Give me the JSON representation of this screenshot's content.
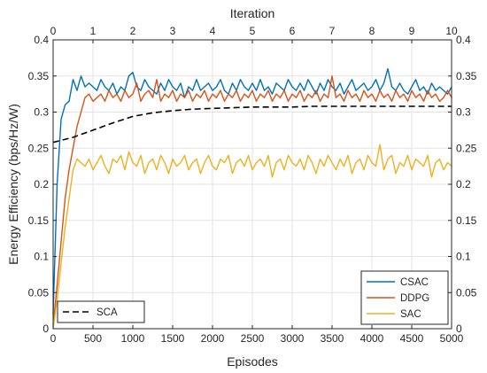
{
  "chart_data": {
    "type": "line",
    "xlabel": "Episodes",
    "ylabel": "Energy Efficiency (bps/Hz/W)",
    "x2label": "Iteration",
    "xlim": [
      0,
      5000
    ],
    "ylim": [
      0,
      0.4
    ],
    "x2lim": [
      0,
      10
    ],
    "xticks": [
      0,
      500,
      1000,
      1500,
      2000,
      2500,
      3000,
      3500,
      4000,
      4500,
      5000
    ],
    "yticks": [
      0,
      0.05,
      0.1,
      0.15,
      0.2,
      0.25,
      0.3,
      0.35,
      0.4
    ],
    "ytick_labels": [
      "0",
      "0.05",
      "0.1",
      "0.15",
      "0.2",
      "0.25",
      "0.3",
      "0.35",
      "0.4"
    ],
    "x2ticks": [
      0,
      1,
      2,
      3,
      4,
      5,
      6,
      7,
      8,
      9,
      10
    ],
    "grid": true,
    "series": [
      {
        "name": "CSAC",
        "axis": "episodes",
        "color": "#0072BD",
        "style": "solid",
        "x": [
          0,
          50,
          100,
          150,
          200,
          250,
          300,
          350,
          400,
          450,
          500,
          550,
          600,
          650,
          700,
          750,
          800,
          850,
          900,
          950,
          1000,
          1050,
          1100,
          1150,
          1200,
          1250,
          1300,
          1350,
          1400,
          1450,
          1500,
          1550,
          1600,
          1650,
          1700,
          1750,
          1800,
          1850,
          1900,
          1950,
          2000,
          2050,
          2100,
          2150,
          2200,
          2250,
          2300,
          2350,
          2400,
          2450,
          2500,
          2550,
          2600,
          2650,
          2700,
          2750,
          2800,
          2850,
          2900,
          2950,
          3000,
          3050,
          3100,
          3150,
          3200,
          3250,
          3300,
          3350,
          3400,
          3450,
          3500,
          3550,
          3600,
          3650,
          3700,
          3750,
          3800,
          3850,
          3900,
          3950,
          4000,
          4050,
          4100,
          4150,
          4200,
          4250,
          4300,
          4350,
          4400,
          4450,
          4500,
          4550,
          4600,
          4650,
          4700,
          4750,
          4800,
          4850,
          4900,
          4950,
          5000
        ],
        "y": [
          0.02,
          0.2,
          0.29,
          0.31,
          0.315,
          0.345,
          0.33,
          0.35,
          0.335,
          0.34,
          0.335,
          0.33,
          0.345,
          0.335,
          0.33,
          0.34,
          0.325,
          0.335,
          0.33,
          0.35,
          0.355,
          0.335,
          0.33,
          0.345,
          0.335,
          0.33,
          0.325,
          0.34,
          0.33,
          0.345,
          0.335,
          0.33,
          0.34,
          0.32,
          0.335,
          0.33,
          0.345,
          0.33,
          0.335,
          0.34,
          0.33,
          0.335,
          0.345,
          0.33,
          0.325,
          0.34,
          0.33,
          0.345,
          0.335,
          0.33,
          0.34,
          0.33,
          0.345,
          0.33,
          0.335,
          0.325,
          0.34,
          0.335,
          0.33,
          0.345,
          0.335,
          0.33,
          0.34,
          0.33,
          0.345,
          0.335,
          0.325,
          0.34,
          0.33,
          0.345,
          0.335,
          0.33,
          0.34,
          0.325,
          0.335,
          0.345,
          0.33,
          0.335,
          0.34,
          0.33,
          0.335,
          0.345,
          0.33,
          0.34,
          0.36,
          0.335,
          0.33,
          0.34,
          0.33,
          0.325,
          0.335,
          0.345,
          0.33,
          0.335,
          0.325,
          0.34,
          0.33,
          0.335,
          0.33,
          0.325,
          0.335
        ]
      },
      {
        "name": "DDPG",
        "axis": "episodes",
        "color": "#D95319",
        "style": "solid",
        "x": [
          0,
          50,
          100,
          150,
          200,
          250,
          300,
          350,
          400,
          450,
          500,
          550,
          600,
          650,
          700,
          750,
          800,
          850,
          900,
          950,
          1000,
          1050,
          1100,
          1150,
          1200,
          1250,
          1300,
          1350,
          1400,
          1450,
          1500,
          1550,
          1600,
          1650,
          1700,
          1750,
          1800,
          1850,
          1900,
          1950,
          2000,
          2050,
          2100,
          2150,
          2200,
          2250,
          2300,
          2350,
          2400,
          2450,
          2500,
          2550,
          2600,
          2650,
          2700,
          2750,
          2800,
          2850,
          2900,
          2950,
          3000,
          3050,
          3100,
          3150,
          3200,
          3250,
          3300,
          3350,
          3400,
          3450,
          3500,
          3550,
          3600,
          3650,
          3700,
          3750,
          3800,
          3850,
          3900,
          3950,
          4000,
          4050,
          4100,
          4150,
          4200,
          4250,
          4300,
          4350,
          4400,
          4450,
          4500,
          4550,
          4600,
          4650,
          4700,
          4750,
          4800,
          4850,
          4900,
          4950,
          5000
        ],
        "y": [
          0.005,
          0.06,
          0.12,
          0.18,
          0.22,
          0.25,
          0.28,
          0.3,
          0.32,
          0.325,
          0.315,
          0.32,
          0.325,
          0.315,
          0.33,
          0.32,
          0.325,
          0.315,
          0.33,
          0.32,
          0.325,
          0.34,
          0.315,
          0.325,
          0.33,
          0.32,
          0.345,
          0.315,
          0.325,
          0.32,
          0.33,
          0.315,
          0.325,
          0.32,
          0.33,
          0.315,
          0.325,
          0.32,
          0.33,
          0.315,
          0.325,
          0.32,
          0.33,
          0.315,
          0.325,
          0.32,
          0.33,
          0.315,
          0.325,
          0.32,
          0.33,
          0.315,
          0.325,
          0.32,
          0.33,
          0.315,
          0.325,
          0.32,
          0.33,
          0.315,
          0.325,
          0.32,
          0.33,
          0.315,
          0.325,
          0.32,
          0.33,
          0.315,
          0.325,
          0.32,
          0.35,
          0.32,
          0.325,
          0.315,
          0.33,
          0.32,
          0.325,
          0.315,
          0.33,
          0.32,
          0.325,
          0.315,
          0.33,
          0.32,
          0.325,
          0.315,
          0.33,
          0.32,
          0.325,
          0.315,
          0.33,
          0.32,
          0.325,
          0.315,
          0.33,
          0.32,
          0.325,
          0.315,
          0.32,
          0.33,
          0.32
        ]
      },
      {
        "name": "SAC",
        "axis": "episodes",
        "color": "#EDB120",
        "style": "solid",
        "x": [
          0,
          50,
          100,
          150,
          200,
          250,
          300,
          350,
          400,
          450,
          500,
          550,
          600,
          650,
          700,
          750,
          800,
          850,
          900,
          950,
          1000,
          1050,
          1100,
          1150,
          1200,
          1250,
          1300,
          1350,
          1400,
          1450,
          1500,
          1550,
          1600,
          1650,
          1700,
          1750,
          1800,
          1850,
          1900,
          1950,
          2000,
          2050,
          2100,
          2150,
          2200,
          2250,
          2300,
          2350,
          2400,
          2450,
          2500,
          2550,
          2600,
          2650,
          2700,
          2750,
          2800,
          2850,
          2900,
          2950,
          3000,
          3050,
          3100,
          3150,
          3200,
          3250,
          3300,
          3350,
          3400,
          3450,
          3500,
          3550,
          3600,
          3650,
          3700,
          3750,
          3800,
          3850,
          3900,
          3950,
          4000,
          4050,
          4100,
          4150,
          4200,
          4250,
          4300,
          4350,
          4400,
          4450,
          4500,
          4550,
          4600,
          4650,
          4700,
          4750,
          4800,
          4850,
          4900,
          4950,
          5000
        ],
        "y": [
          0.0,
          0.04,
          0.09,
          0.14,
          0.18,
          0.22,
          0.235,
          0.23,
          0.225,
          0.235,
          0.22,
          0.23,
          0.24,
          0.225,
          0.215,
          0.235,
          0.23,
          0.24,
          0.22,
          0.245,
          0.23,
          0.225,
          0.24,
          0.215,
          0.23,
          0.235,
          0.22,
          0.24,
          0.23,
          0.215,
          0.235,
          0.225,
          0.23,
          0.24,
          0.22,
          0.23,
          0.235,
          0.215,
          0.23,
          0.24,
          0.225,
          0.22,
          0.235,
          0.23,
          0.24,
          0.215,
          0.23,
          0.235,
          0.225,
          0.24,
          0.22,
          0.23,
          0.235,
          0.225,
          0.24,
          0.21,
          0.23,
          0.235,
          0.22,
          0.24,
          0.23,
          0.225,
          0.235,
          0.22,
          0.24,
          0.23,
          0.215,
          0.235,
          0.225,
          0.24,
          0.23,
          0.22,
          0.235,
          0.225,
          0.24,
          0.215,
          0.23,
          0.235,
          0.22,
          0.24,
          0.23,
          0.225,
          0.255,
          0.22,
          0.235,
          0.24,
          0.215,
          0.23,
          0.225,
          0.24,
          0.22,
          0.235,
          0.23,
          0.225,
          0.24,
          0.21,
          0.23,
          0.235,
          0.22,
          0.23,
          0.225
        ]
      },
      {
        "name": "SCA",
        "axis": "iteration",
        "color": "#000000",
        "style": "dashed",
        "x": [
          0,
          0.5,
          1,
          1.5,
          2,
          2.5,
          3,
          3.5,
          4,
          4.5,
          5,
          5.5,
          6,
          6.5,
          7,
          7.5,
          8,
          8.5,
          9,
          9.5,
          10
        ],
        "y": [
          0.258,
          0.265,
          0.275,
          0.285,
          0.294,
          0.299,
          0.302,
          0.304,
          0.305,
          0.306,
          0.307,
          0.307,
          0.307,
          0.308,
          0.308,
          0.308,
          0.308,
          0.308,
          0.308,
          0.308,
          0.308
        ]
      }
    ],
    "legends": [
      {
        "placement": "bottom-right",
        "entries": [
          "CSAC",
          "DDPG",
          "SAC"
        ]
      },
      {
        "placement": "bottom-left",
        "entries": [
          "SCA"
        ]
      }
    ]
  }
}
